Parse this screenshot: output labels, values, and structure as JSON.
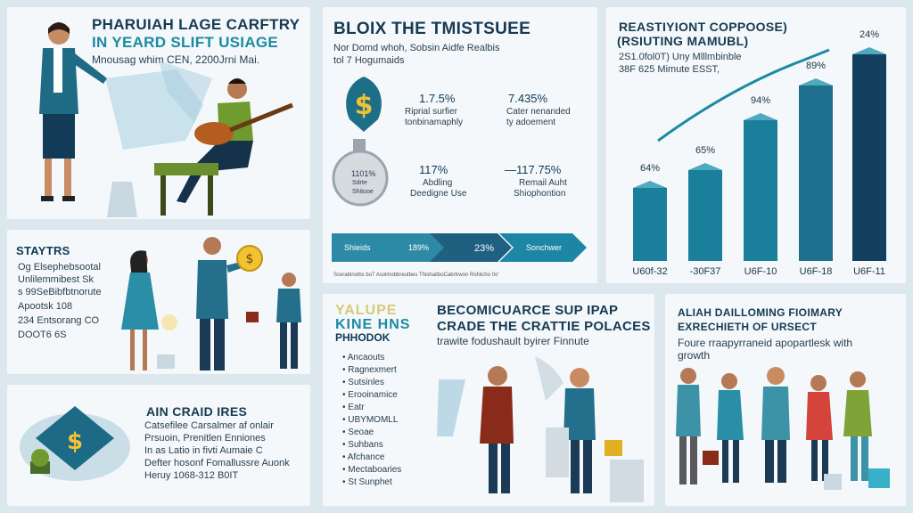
{
  "panel1": {
    "title1": "PHARUIAH LAGE CARFTRY",
    "title2": "IN YEARD SLIFT USIAGE",
    "subtitle": "Mnousag whim CEN, 2200Jrni Mai."
  },
  "panel2": {
    "title": "BLOIX THE TMISTSUEE",
    "sub1": "Nor Domd whoh,  Sobsin Aidfe  Realbis",
    "sub2": "tol 7 Hogumaids",
    "stat1_value": "1.7.5%",
    "stat1_line1": "Riprial surfier",
    "stat1_line2": "tonbinamaphly",
    "stat2_value": "7.435%",
    "stat2_line1": "Cater nenanded",
    "stat2_line2": "ty adoement",
    "stat3_value": "117%",
    "stat3_line1": "Abdling",
    "stat3_line2": "Deedigne Use",
    "stat4_value": "—117.75%",
    "stat4_line1": "Remail Auht",
    "stat4_line2": "Shiophontion",
    "coin_text1": "1101%",
    "coin_text2": "Sdrte",
    "coin_text3": "Shitooe",
    "arrow1": "Shieids",
    "arrow2": "189%",
    "arrow3": "23%",
    "arrow4": "Sonchwer",
    "footer": "Scerabinolbs bo7 Asolmobbreutbes ThishaitboCabrtrwon RoNicho 0o'"
  },
  "panel3": {
    "title1": "REASTIYIONT COPPOOSE)",
    "title2": "(RSIUTING MAMUBL)",
    "sub1": "2S1.0fol0T) Uny  Mlllmbinble",
    "sub2": "38F 625 Mimute ESST,",
    "chart_data": {
      "type": "bar",
      "categories": [
        "U60f-32",
        "-30F37",
        "U6F-10",
        "U6F-18",
        "U6F-11"
      ],
      "values": [
        64,
        65,
        94,
        89,
        24
      ],
      "labels": [
        "64%",
        "65%",
        "94%",
        "89%",
        "24%"
      ]
    }
  },
  "panel4": {
    "title": "STAYTRS",
    "lines": [
      "Og Elsephebsootal",
      "Unlilemmibest Sk",
      "s 99SeBibfbtnorute",
      "Apootsk 108",
      "234 Entsorang CO",
      "DOOT6 6S"
    ]
  },
  "panel5": {
    "title": "AIN CRAID IRES",
    "lines": [
      "Catsefilee Carsalmer af onlair",
      "Prsuoin, Prenitlen Enniones",
      "In as Latio in fivti Aumaie C",
      "Defter hosonf Fomallussre Auonk",
      "Heruy 1068-312 B0IT"
    ]
  },
  "panel6": {
    "logo1": "YALUPE",
    "logo2": "KINE HNS",
    "logo3": "PHHODOK",
    "title1": "BECOMICUARCE SUP IPAP",
    "title2": "CRADE THE CRATTIE POLACES",
    "subtitle": "trawite fodushault byirer Finnute",
    "list": [
      "Ancaouts",
      "Ragnexmert",
      "Sutsinles",
      "Erooinamice",
      "Eatr",
      "UBYMOMLL",
      "Seoae",
      "Suhbans",
      "Afchance",
      "Mectaboaries",
      "St Sunphet"
    ]
  },
  "panel7": {
    "title1": "ALIAH DAILLOMING FIOIMARY",
    "title2": "EXRECHIETH OF URSECT",
    "subtitle1": "Foure rraapyrraneid apopartlesk with",
    "subtitle2": "growth"
  },
  "colors": {
    "navy": "#0f3a55",
    "teal": "#1a8ba0",
    "light_teal": "#5fb3c4",
    "background": "#dde7ee"
  }
}
